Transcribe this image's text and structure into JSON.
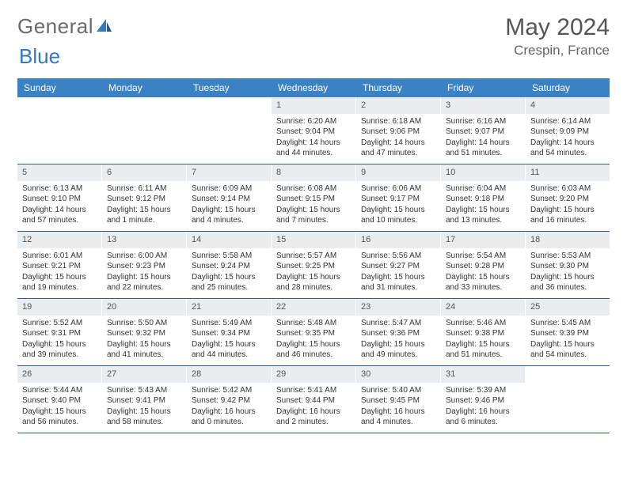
{
  "brand": {
    "word1": "General",
    "word2": "Blue"
  },
  "title": "May 2024",
  "location": "Crespin, France",
  "colors": {
    "header_bg": "#3b82c4",
    "header_text": "#ffffff",
    "daynum_bg": "#e9edf0",
    "week_border": "#2f5f8f",
    "logo_gray": "#6b6b6b",
    "logo_blue": "#2f7bbf"
  },
  "weekdays": [
    "Sunday",
    "Monday",
    "Tuesday",
    "Wednesday",
    "Thursday",
    "Friday",
    "Saturday"
  ],
  "weeks": [
    [
      {
        "n": "",
        "lines": []
      },
      {
        "n": "",
        "lines": []
      },
      {
        "n": "",
        "lines": []
      },
      {
        "n": "1",
        "lines": [
          "Sunrise: 6:20 AM",
          "Sunset: 9:04 PM",
          "Daylight: 14 hours",
          "and 44 minutes."
        ]
      },
      {
        "n": "2",
        "lines": [
          "Sunrise: 6:18 AM",
          "Sunset: 9:06 PM",
          "Daylight: 14 hours",
          "and 47 minutes."
        ]
      },
      {
        "n": "3",
        "lines": [
          "Sunrise: 6:16 AM",
          "Sunset: 9:07 PM",
          "Daylight: 14 hours",
          "and 51 minutes."
        ]
      },
      {
        "n": "4",
        "lines": [
          "Sunrise: 6:14 AM",
          "Sunset: 9:09 PM",
          "Daylight: 14 hours",
          "and 54 minutes."
        ]
      }
    ],
    [
      {
        "n": "5",
        "lines": [
          "Sunrise: 6:13 AM",
          "Sunset: 9:10 PM",
          "Daylight: 14 hours",
          "and 57 minutes."
        ]
      },
      {
        "n": "6",
        "lines": [
          "Sunrise: 6:11 AM",
          "Sunset: 9:12 PM",
          "Daylight: 15 hours",
          "and 1 minute."
        ]
      },
      {
        "n": "7",
        "lines": [
          "Sunrise: 6:09 AM",
          "Sunset: 9:14 PM",
          "Daylight: 15 hours",
          "and 4 minutes."
        ]
      },
      {
        "n": "8",
        "lines": [
          "Sunrise: 6:08 AM",
          "Sunset: 9:15 PM",
          "Daylight: 15 hours",
          "and 7 minutes."
        ]
      },
      {
        "n": "9",
        "lines": [
          "Sunrise: 6:06 AM",
          "Sunset: 9:17 PM",
          "Daylight: 15 hours",
          "and 10 minutes."
        ]
      },
      {
        "n": "10",
        "lines": [
          "Sunrise: 6:04 AM",
          "Sunset: 9:18 PM",
          "Daylight: 15 hours",
          "and 13 minutes."
        ]
      },
      {
        "n": "11",
        "lines": [
          "Sunrise: 6:03 AM",
          "Sunset: 9:20 PM",
          "Daylight: 15 hours",
          "and 16 minutes."
        ]
      }
    ],
    [
      {
        "n": "12",
        "lines": [
          "Sunrise: 6:01 AM",
          "Sunset: 9:21 PM",
          "Daylight: 15 hours",
          "and 19 minutes."
        ]
      },
      {
        "n": "13",
        "lines": [
          "Sunrise: 6:00 AM",
          "Sunset: 9:23 PM",
          "Daylight: 15 hours",
          "and 22 minutes."
        ]
      },
      {
        "n": "14",
        "lines": [
          "Sunrise: 5:58 AM",
          "Sunset: 9:24 PM",
          "Daylight: 15 hours",
          "and 25 minutes."
        ]
      },
      {
        "n": "15",
        "lines": [
          "Sunrise: 5:57 AM",
          "Sunset: 9:25 PM",
          "Daylight: 15 hours",
          "and 28 minutes."
        ]
      },
      {
        "n": "16",
        "lines": [
          "Sunrise: 5:56 AM",
          "Sunset: 9:27 PM",
          "Daylight: 15 hours",
          "and 31 minutes."
        ]
      },
      {
        "n": "17",
        "lines": [
          "Sunrise: 5:54 AM",
          "Sunset: 9:28 PM",
          "Daylight: 15 hours",
          "and 33 minutes."
        ]
      },
      {
        "n": "18",
        "lines": [
          "Sunrise: 5:53 AM",
          "Sunset: 9:30 PM",
          "Daylight: 15 hours",
          "and 36 minutes."
        ]
      }
    ],
    [
      {
        "n": "19",
        "lines": [
          "Sunrise: 5:52 AM",
          "Sunset: 9:31 PM",
          "Daylight: 15 hours",
          "and 39 minutes."
        ]
      },
      {
        "n": "20",
        "lines": [
          "Sunrise: 5:50 AM",
          "Sunset: 9:32 PM",
          "Daylight: 15 hours",
          "and 41 minutes."
        ]
      },
      {
        "n": "21",
        "lines": [
          "Sunrise: 5:49 AM",
          "Sunset: 9:34 PM",
          "Daylight: 15 hours",
          "and 44 minutes."
        ]
      },
      {
        "n": "22",
        "lines": [
          "Sunrise: 5:48 AM",
          "Sunset: 9:35 PM",
          "Daylight: 15 hours",
          "and 46 minutes."
        ]
      },
      {
        "n": "23",
        "lines": [
          "Sunrise: 5:47 AM",
          "Sunset: 9:36 PM",
          "Daylight: 15 hours",
          "and 49 minutes."
        ]
      },
      {
        "n": "24",
        "lines": [
          "Sunrise: 5:46 AM",
          "Sunset: 9:38 PM",
          "Daylight: 15 hours",
          "and 51 minutes."
        ]
      },
      {
        "n": "25",
        "lines": [
          "Sunrise: 5:45 AM",
          "Sunset: 9:39 PM",
          "Daylight: 15 hours",
          "and 54 minutes."
        ]
      }
    ],
    [
      {
        "n": "26",
        "lines": [
          "Sunrise: 5:44 AM",
          "Sunset: 9:40 PM",
          "Daylight: 15 hours",
          "and 56 minutes."
        ]
      },
      {
        "n": "27",
        "lines": [
          "Sunrise: 5:43 AM",
          "Sunset: 9:41 PM",
          "Daylight: 15 hours",
          "and 58 minutes."
        ]
      },
      {
        "n": "28",
        "lines": [
          "Sunrise: 5:42 AM",
          "Sunset: 9:42 PM",
          "Daylight: 16 hours",
          "and 0 minutes."
        ]
      },
      {
        "n": "29",
        "lines": [
          "Sunrise: 5:41 AM",
          "Sunset: 9:44 PM",
          "Daylight: 16 hours",
          "and 2 minutes."
        ]
      },
      {
        "n": "30",
        "lines": [
          "Sunrise: 5:40 AM",
          "Sunset: 9:45 PM",
          "Daylight: 16 hours",
          "and 4 minutes."
        ]
      },
      {
        "n": "31",
        "lines": [
          "Sunrise: 5:39 AM",
          "Sunset: 9:46 PM",
          "Daylight: 16 hours",
          "and 6 minutes."
        ]
      },
      {
        "n": "",
        "lines": []
      }
    ]
  ]
}
